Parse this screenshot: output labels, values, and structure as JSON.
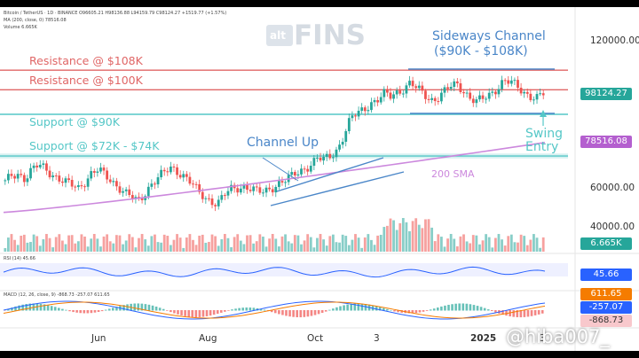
{
  "header": {
    "line1": "Bitcoin / TetherUS · 1D · BINANCE  O96605.21  H98136.88  L94159.79  C98124.27  +1519.77 (+1.57%)",
    "line2": "MA (200, close, 0)  78516.08",
    "line3": "Volume  6.665K"
  },
  "watermark": {
    "brand_small": "alt",
    "brand_big": "FINS"
  },
  "annotations": {
    "sideways_channel_title": "Sideways Channel",
    "sideways_channel_range": "($90K - $108K)",
    "resistance_108": "Resistance @ $108K",
    "resistance_100": "Resistance @ $100K",
    "support_90": "Support @ $90K",
    "support_72_74": "Support @ $72K - $74K",
    "channel_up": "Channel Up",
    "sma_200": "200 SMA",
    "swing_entry_1": "Swing",
    "swing_entry_2": "Entry"
  },
  "price_tags": {
    "last_price": "98124.27",
    "sma_value": "78516.08",
    "volume_value": "6.665K",
    "rsi_value": "45.66",
    "macd_1": "611.65",
    "macd_2": "-257.07",
    "macd_3": "-868.73"
  },
  "axis_labels": {
    "y_120000": "120000.00",
    "y_60000": "60000.00",
    "y_40000": "40000.00",
    "x_jun": "Jun",
    "x_aug": "Aug",
    "x_oct": "Oct",
    "x_3": "3",
    "x_2025": "2025",
    "x_3b": "3"
  },
  "pane_labels": {
    "rsi": "RSI (14)  45.66",
    "macd": "MACD (12, 26, close, 9)  -868.73  -257.07  611.65"
  },
  "footer_watermark": "hiba007_",
  "colors": {
    "resistance": "#e06666",
    "support": "#55c7c7",
    "channel": "#4a86c8",
    "sma": "#cc88dd",
    "up": "#26a69a",
    "down": "#ef5350",
    "rsi": "#2962ff",
    "price_tag": "#26a69a",
    "sma_tag": "#b45fcf"
  },
  "chart_data": {
    "type": "candlestick",
    "symbol": "BTC/USDT",
    "timeframe": "1D",
    "x_ticks": [
      "Jun",
      "Aug",
      "Oct",
      "3",
      "2025",
      "3"
    ],
    "y_ticks": [
      120000,
      60000,
      40000
    ],
    "last_close": 98124.27,
    "sma_200": 78516.08,
    "levels": [
      {
        "name": "Resistance @ $108K",
        "value": 108000
      },
      {
        "name": "Resistance @ $100K",
        "value": 100000
      },
      {
        "name": "Support @ $90K",
        "value": 90000
      },
      {
        "name": "Support @ $72K - $74K",
        "value": 73000
      }
    ],
    "close_path": [
      62000,
      65000,
      66000,
      64000,
      67000,
      69000,
      68000,
      66000,
      64000,
      62000,
      61000,
      60000,
      63000,
      66000,
      67000,
      65000,
      63000,
      61000,
      58000,
      56000,
      54000,
      58000,
      62000,
      64000,
      66000,
      68000,
      67000,
      65000,
      62000,
      58000,
      56000,
      55000,
      54000,
      57000,
      59000,
      60000,
      61000,
      60000,
      58000,
      58000,
      60000,
      62000,
      63000,
      64000,
      66000,
      68000,
      70000,
      72000,
      71000,
      73000,
      76000,
      82000,
      88000,
      90000,
      92000,
      95000,
      96000,
      98000,
      97000,
      99000,
      101000,
      103000,
      100000,
      98000,
      96000,
      97000,
      99000,
      101000,
      102000,
      100000,
      97000,
      95000,
      96000,
      98000,
      101000,
      104000,
      103000,
      101000,
      99000,
      98000,
      97000,
      98124
    ]
  }
}
